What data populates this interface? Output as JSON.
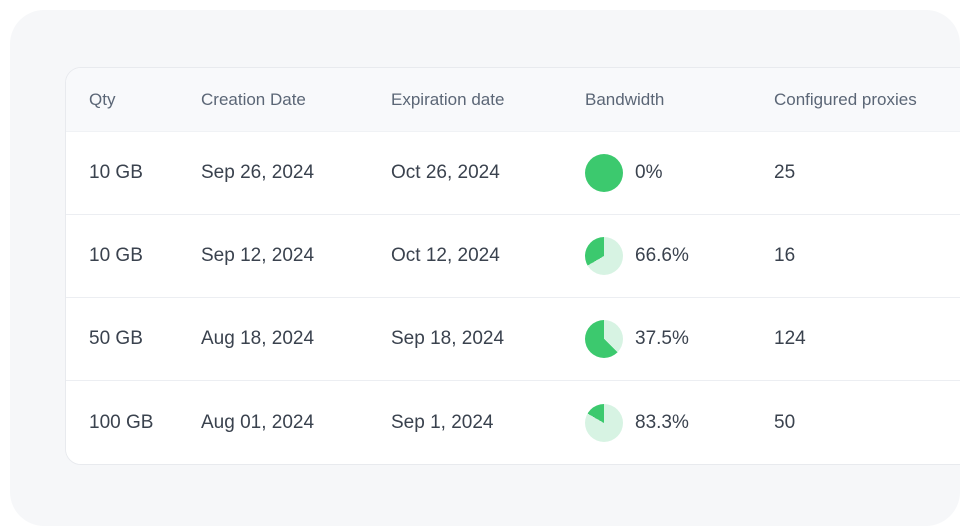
{
  "table": {
    "columns": [
      {
        "key": "qty",
        "label": "Qty"
      },
      {
        "key": "creation_date",
        "label": "Creation Date"
      },
      {
        "key": "expiration_date",
        "label": "Expiration date"
      },
      {
        "key": "bandwidth",
        "label": "Bandwidth"
      },
      {
        "key": "configured_proxies",
        "label": "Configured proxies"
      }
    ],
    "rows": [
      {
        "qty": "10 GB",
        "creation_date": "Sep 26, 2024",
        "expiration_date": "Oct 26, 2024",
        "bandwidth_used_percent": 0,
        "bandwidth_label": "0%",
        "configured_proxies": "25"
      },
      {
        "qty": "10 GB",
        "creation_date": "Sep 12, 2024",
        "expiration_date": "Oct 12, 2024",
        "bandwidth_used_percent": 66.6,
        "bandwidth_label": "66.6%",
        "configured_proxies": "16"
      },
      {
        "qty": "50 GB",
        "creation_date": "Aug 18, 2024",
        "expiration_date": "Sep 18, 2024",
        "bandwidth_used_percent": 37.5,
        "bandwidth_label": "37.5%",
        "configured_proxies": "124"
      },
      {
        "qty": "100 GB",
        "creation_date": "Aug 01, 2024",
        "expiration_date": "Sep 1, 2024",
        "bandwidth_used_percent": 83.3,
        "bandwidth_label": "83.3%",
        "configured_proxies": "50"
      }
    ]
  },
  "colors": {
    "pie_green": "#3cc96e",
    "pie_light_green": "#d7f3e3",
    "panel_background": "#f6f7f9",
    "header_background": "#f8f9fb",
    "card_border": "#e8eaee",
    "header_text": "#5b6676",
    "body_text": "#3a424e"
  }
}
